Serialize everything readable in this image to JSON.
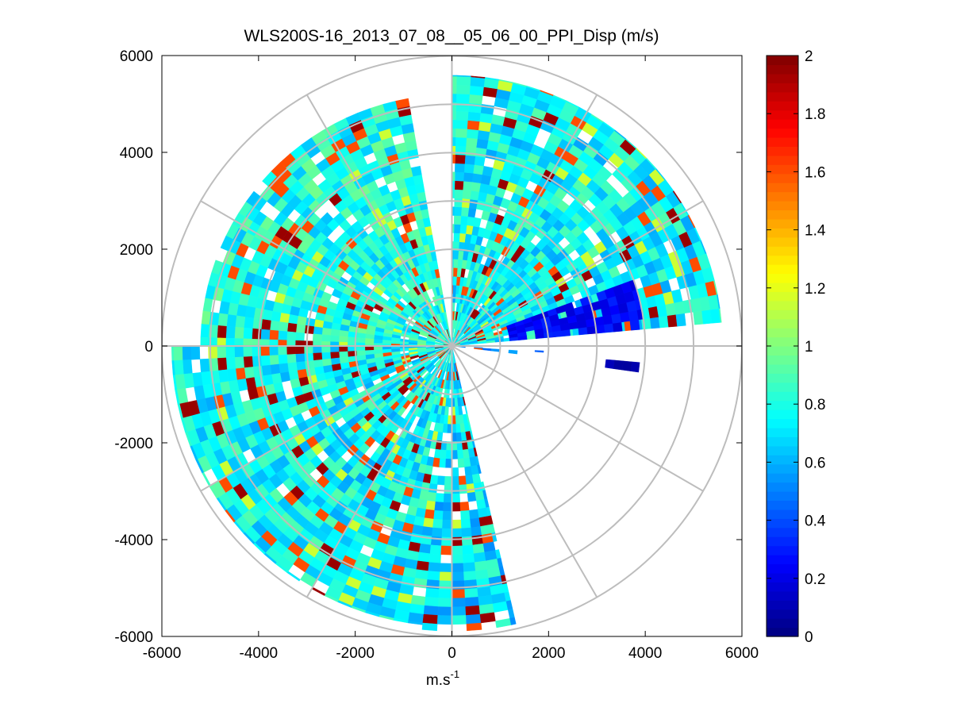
{
  "chart_data": {
    "type": "heatmap",
    "subtype": "polar-ppi",
    "title": "WLS200S-16_2013_07_08__05_06_00_PPI_Disp (m/s)",
    "xlabel": "m.s",
    "xlabel_superscript": "-1",
    "ylabel": "",
    "xlim": [
      -6000,
      6000
    ],
    "ylim": [
      -6000,
      6000
    ],
    "xticks": [
      "-6000",
      "-4000",
      "-2000",
      "0",
      "2000",
      "4000",
      "6000"
    ],
    "yticks": [
      "6000",
      "4000",
      "2000",
      "0",
      "-2000",
      "-4000",
      "-6000"
    ],
    "polar_grid": {
      "ring_radii_m": [
        1000,
        2000,
        3000,
        4000,
        5000,
        6000
      ],
      "spoke_angles_deg": [
        0,
        30,
        60,
        90,
        120,
        150,
        180,
        210,
        240,
        270,
        300,
        330
      ]
    },
    "colorbar": {
      "colormap": "jet",
      "vmin": 0,
      "vmax": 2,
      "ticks": [
        "0",
        "0.2",
        "0.4",
        "0.6",
        "0.8",
        "1",
        "1.2",
        "1.4",
        "1.6",
        "1.8",
        "2"
      ]
    },
    "sectors": [
      {
        "az_start_deg": 100,
        "az_end_deg": 180,
        "range_m": [
          0,
          5200
        ],
        "mean_value": 0.8,
        "note": "NW quadrant, dense, high values near 2000-3500 m"
      },
      {
        "az_start_deg": 180,
        "az_end_deg": 264,
        "range_m": [
          0,
          5800
        ],
        "mean_value": 0.75,
        "note": "W/SW, dense"
      },
      {
        "az_start_deg": 264,
        "az_end_deg": 283,
        "range_m": [
          0,
          5900
        ],
        "mean_value": 0.7,
        "note": "S edge with red streak"
      },
      {
        "az_start_deg": 5,
        "az_end_deg": 90,
        "range_m": [
          0,
          5600
        ],
        "mean_value": 0.75,
        "note": "NE, dense"
      },
      {
        "az_start_deg": 5,
        "az_end_deg": 20,
        "range_m": [
          1200,
          4000
        ],
        "mean_value": 0.25,
        "note": "blue low band"
      },
      {
        "az_start_deg": -8,
        "az_end_deg": -5,
        "range_m": [
          3200,
          3900
        ],
        "mean_value": 0.1,
        "note": "thin blue streak"
      },
      {
        "az_start_deg": -7,
        "az_end_deg": -3,
        "range_m": [
          100,
          1900
        ],
        "mean_value": 0.4,
        "note": "thin sparse streak"
      }
    ],
    "range_gate_m": 180,
    "azimuth_step_deg": 3
  }
}
